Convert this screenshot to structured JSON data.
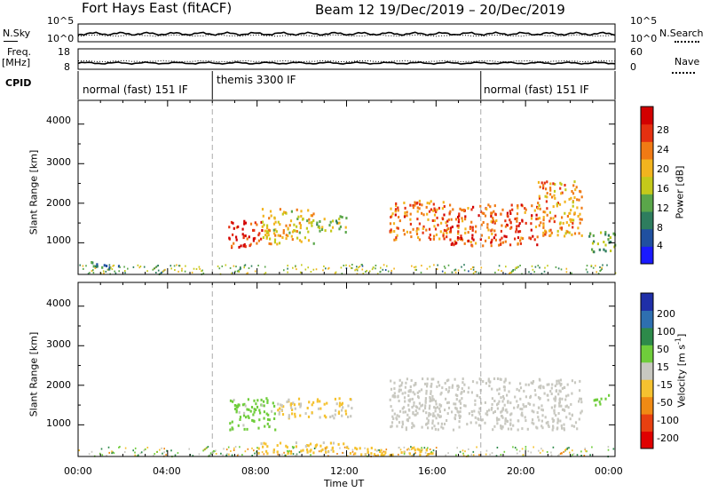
{
  "header": {
    "station": "Fort Hays East (fitACF)",
    "beam_info": "Beam 12  19/Dec/2019 – 20/Dec/2019"
  },
  "panels": {
    "nsky_label": "N.Sky",
    "nsearch_label": "N.Search",
    "noise_ticks": [
      "10^5",
      "10^0"
    ],
    "freq_label": "Freq.",
    "freq_unit": "[MHz]",
    "freq_ticks": [
      "18",
      "8"
    ],
    "nave_label": "Nave",
    "nave_ticks": [
      "60",
      "0"
    ],
    "cpid_label": "CPID",
    "cpid_modes": [
      "normal (fast) 151 IF",
      "themis 3300 IF",
      "normal (fast) 151 IF"
    ]
  },
  "axes": {
    "ylabel": "Slant Range [km]",
    "xlabel": "Time UT",
    "y_ticks": [
      "4000",
      "3000",
      "2000",
      "1000"
    ],
    "x_ticks": [
      "00:00",
      "04:00",
      "08:00",
      "12:00",
      "16:00",
      "20:00",
      "00:00"
    ]
  },
  "colorbars": {
    "power_label": "Power [dB]",
    "power_ticks": [
      "28",
      "24",
      "20",
      "16",
      "12",
      "8",
      "4"
    ],
    "power_colors": [
      "#1a1aff",
      "#2050a0",
      "#2e7d5e",
      "#5aa64a",
      "#c4c91a",
      "#f2b41e",
      "#f07a14",
      "#e53010",
      "#d20000"
    ],
    "velocity_label": "Velocity [m s",
    "velocity_label_sup": "-1",
    "velocity_label_end": "]",
    "velocity_ticks": [
      "200",
      "100",
      "50",
      "15",
      "-15",
      "-50",
      "-100",
      "-200"
    ],
    "velocity_colors": [
      "#1f2fa8",
      "#2e6fb0",
      "#2d8a4a",
      "#6fcd3b",
      "#c8c8c0",
      "#f5c230",
      "#f08a14",
      "#e84010",
      "#e00000"
    ]
  },
  "chart_data": [
    {
      "type": "heatmap",
      "title": "Power",
      "x": [
        "00:00",
        "04:00",
        "08:00",
        "12:00",
        "16:00",
        "20:00",
        "00:00"
      ],
      "x_range_hours": [
        0,
        24
      ],
      "ylim": [
        200,
        4600
      ],
      "xlabel": "Time UT",
      "ylabel": "Slant Range [km]",
      "colorbar": {
        "label": "Power [dB]",
        "range": [
          0,
          30
        ]
      },
      "echo_regions": [
        {
          "t_start": 0.5,
          "t_end": 1.8,
          "r_min": 350,
          "r_max": 550,
          "value": 8
        },
        {
          "t_start": 6.7,
          "t_end": 8.2,
          "r_min": 900,
          "r_max": 1600,
          "value": 26
        },
        {
          "t_start": 8.2,
          "t_end": 10.5,
          "r_min": 1000,
          "r_max": 1900,
          "value": 18
        },
        {
          "t_start": 10.5,
          "t_end": 12.0,
          "r_min": 1300,
          "r_max": 1700,
          "value": 14
        },
        {
          "t_start": 13.9,
          "t_end": 16.5,
          "r_min": 1100,
          "r_max": 2100,
          "value": 22
        },
        {
          "t_start": 16.5,
          "t_end": 20.5,
          "r_min": 950,
          "r_max": 2000,
          "value": 24
        },
        {
          "t_start": 20.5,
          "t_end": 22.5,
          "r_min": 1200,
          "r_max": 2600,
          "value": 20
        },
        {
          "t_start": 22.8,
          "t_end": 24.0,
          "r_min": 800,
          "r_max": 1300,
          "value": 12
        }
      ]
    },
    {
      "type": "heatmap",
      "title": "Velocity",
      "x": [
        "00:00",
        "04:00",
        "08:00",
        "12:00",
        "16:00",
        "20:00",
        "00:00"
      ],
      "x_range_hours": [
        0,
        24
      ],
      "ylim": [
        200,
        4600
      ],
      "xlabel": "Time UT",
      "ylabel": "Slant Range [km]",
      "colorbar": {
        "label": "Velocity [m s-1]",
        "range": [
          -250,
          250
        ]
      },
      "echo_regions": [
        {
          "t_start": 6.7,
          "t_end": 8.8,
          "r_min": 900,
          "r_max": 1700,
          "value": 40
        },
        {
          "t_start": 8.8,
          "t_end": 12.2,
          "r_min": 1200,
          "r_max": 1700,
          "value": -30
        },
        {
          "t_start": 8.0,
          "t_end": 12.0,
          "r_min": 300,
          "r_max": 600,
          "value": -40
        },
        {
          "t_start": 13.9,
          "t_end": 22.5,
          "r_min": 900,
          "r_max": 2200,
          "value": 0
        },
        {
          "t_start": 12.0,
          "t_end": 16.0,
          "r_min": 250,
          "r_max": 450,
          "value": -50
        },
        {
          "t_start": 23.0,
          "t_end": 23.7,
          "r_min": 1500,
          "r_max": 1800,
          "value": 50
        }
      ]
    }
  ]
}
